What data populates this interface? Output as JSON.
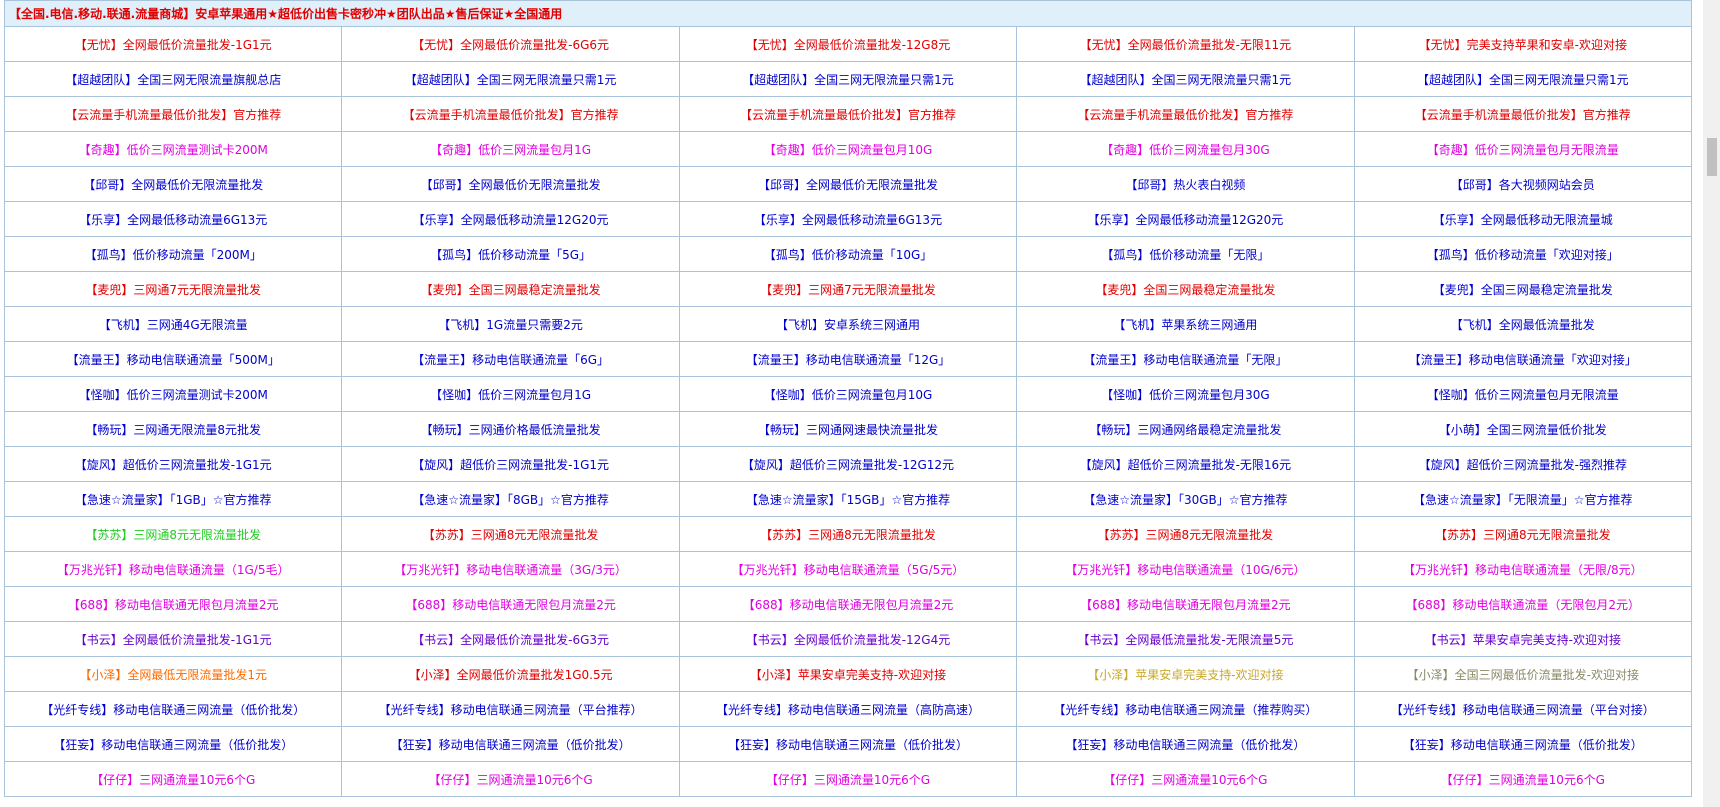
{
  "header": {
    "title": "【全国.电信.移动.联通.流量商城】安卓苹果通用★超低价出售卡密秒冲★团队出品★售后保证★全国通用"
  },
  "colors": {
    "r": "#e00000",
    "b": "#0000cc",
    "m": "#e000e0",
    "p": "#6600cc",
    "g": "#22cc22",
    "o": "#ff6a00",
    "y": "#c8a82a",
    "k": "#8a8a66"
  },
  "rows": [
    [
      [
        "【无忧】全网最低价流量批发-1G1元",
        "r"
      ],
      [
        "【无忧】全网最低价流量批发-6G6元",
        "r"
      ],
      [
        "【无忧】全网最低价流量批发-12G8元",
        "r"
      ],
      [
        "【无忧】全网最低价流量批发-无限11元",
        "r"
      ],
      [
        "【无忧】完美支持苹果和安卓-欢迎对接",
        "r"
      ]
    ],
    [
      [
        "【超越团队】全国三网无限流量旗舰总店",
        "b"
      ],
      [
        "【超越团队】全国三网无限流量只需1元",
        "b"
      ],
      [
        "【超越团队】全国三网无限流量只需1元",
        "b"
      ],
      [
        "【超越团队】全国三网无限流量只需1元",
        "b"
      ],
      [
        "【超越团队】全国三网无限流量只需1元",
        "b"
      ]
    ],
    [
      [
        "【云流量手机流量最低价批发】官方推荐",
        "r"
      ],
      [
        "【云流量手机流量最低价批发】官方推荐",
        "r"
      ],
      [
        "【云流量手机流量最低价批发】官方推荐",
        "r"
      ],
      [
        "【云流量手机流量最低价批发】官方推荐",
        "r"
      ],
      [
        "【云流量手机流量最低价批发】官方推荐",
        "r"
      ]
    ],
    [
      [
        "【奇趣】低价三网流量测试卡200M",
        "m"
      ],
      [
        "【奇趣】低价三网流量包月1G",
        "m"
      ],
      [
        "【奇趣】低价三网流量包月10G",
        "m"
      ],
      [
        "【奇趣】低价三网流量包月30G",
        "m"
      ],
      [
        "【奇趣】低价三网流量包月无限流量",
        "m"
      ]
    ],
    [
      [
        "【邱哥】全网最低价无限流量批发",
        "b"
      ],
      [
        "【邱哥】全网最低价无限流量批发",
        "b"
      ],
      [
        "【邱哥】全网最低价无限流量批发",
        "b"
      ],
      [
        "【邱哥】热火表白视频",
        "b"
      ],
      [
        "【邱哥】各大视频网站会员",
        "b"
      ]
    ],
    [
      [
        "【乐享】全网最低移动流量6G13元",
        "b"
      ],
      [
        "【乐享】全网最低移动流量12G20元",
        "b"
      ],
      [
        "【乐享】全网最低移动流量6G13元",
        "b"
      ],
      [
        "【乐享】全网最低移动流量12G20元",
        "b"
      ],
      [
        "【乐享】全网最低移动无限流量城",
        "b"
      ]
    ],
    [
      [
        "【孤鸟】低价移动流量「200M」",
        "b"
      ],
      [
        "【孤鸟】低价移动流量「5G」",
        "b"
      ],
      [
        "【孤鸟】低价移动流量「10G」",
        "b"
      ],
      [
        "【孤鸟】低价移动流量「无限」",
        "b"
      ],
      [
        "【孤鸟】低价移动流量「欢迎对接」",
        "b"
      ]
    ],
    [
      [
        "【麦兜】三网通7元无限流量批发",
        "r"
      ],
      [
        "【麦兜】全国三网最稳定流量批发",
        "r"
      ],
      [
        "【麦兜】三网通7元无限流量批发",
        "r"
      ],
      [
        "【麦兜】全国三网最稳定流量批发",
        "r"
      ],
      [
        "【麦兜】全国三网最稳定流量批发",
        "b"
      ]
    ],
    [
      [
        "【飞机】三网通4G无限流量",
        "b"
      ],
      [
        "【飞机】1G流量只需要2元",
        "b"
      ],
      [
        "【飞机】安卓系统三网通用",
        "b"
      ],
      [
        "【飞机】苹果系统三网通用",
        "b"
      ],
      [
        "【飞机】全网最低流量批发",
        "b"
      ]
    ],
    [
      [
        "【流量王】移动电信联通流量「500M」",
        "b"
      ],
      [
        "【流量王】移动电信联通流量「6G」",
        "b"
      ],
      [
        "【流量王】移动电信联通流量「12G」",
        "b"
      ],
      [
        "【流量王】移动电信联通流量「无限」",
        "b"
      ],
      [
        "【流量王】移动电信联通流量「欢迎对接」",
        "b"
      ]
    ],
    [
      [
        "【怪咖】低价三网流量测试卡200M",
        "b"
      ],
      [
        "【怪咖】低价三网流量包月1G",
        "b"
      ],
      [
        "【怪咖】低价三网流量包月10G",
        "b"
      ],
      [
        "【怪咖】低价三网流量包月30G",
        "b"
      ],
      [
        "【怪咖】低价三网流量包月无限流量",
        "b"
      ]
    ],
    [
      [
        "【畅玩】三网通无限流量8元批发",
        "b"
      ],
      [
        "【畅玩】三网通价格最低流量批发",
        "b"
      ],
      [
        "【畅玩】三网通网速最快流量批发",
        "b"
      ],
      [
        "【畅玩】三网通网络最稳定流量批发",
        "b"
      ],
      [
        "【小萌】全国三网流量低价批发",
        "b"
      ]
    ],
    [
      [
        "【旋风】超低价三网流量批发-1G1元",
        "b"
      ],
      [
        "【旋风】超低价三网流量批发-1G1元",
        "b"
      ],
      [
        "【旋风】超低价三网流量批发-12G12元",
        "b"
      ],
      [
        "【旋风】超低价三网流量批发-无限16元",
        "b"
      ],
      [
        "【旋风】超低价三网流量批发-强烈推荐",
        "b"
      ]
    ],
    [
      [
        "【急速☆流量家】「1GB」☆官方推荐",
        "b"
      ],
      [
        "【急速☆流量家】「8GB」☆官方推荐",
        "b"
      ],
      [
        "【急速☆流量家】「15GB」☆官方推荐",
        "b"
      ],
      [
        "【急速☆流量家】「30GB」☆官方推荐",
        "b"
      ],
      [
        "【急速☆流量家】「无限流量」☆官方推荐",
        "b"
      ]
    ],
    [
      [
        "【苏苏】三网通8元无限流量批发",
        "g"
      ],
      [
        "【苏苏】三网通8元无限流量批发",
        "r"
      ],
      [
        "【苏苏】三网通8元无限流量批发",
        "r"
      ],
      [
        "【苏苏】三网通8元无限流量批发",
        "r"
      ],
      [
        "【苏苏】三网通8元无限流量批发",
        "r"
      ]
    ],
    [
      [
        "【万兆光钎】移动电信联通流量（1G/5毛）",
        "m"
      ],
      [
        "【万兆光钎】移动电信联通流量（3G/3元）",
        "m"
      ],
      [
        "【万兆光钎】移动电信联通流量（5G/5元）",
        "m"
      ],
      [
        "【万兆光钎】移动电信联通流量（10G/6元）",
        "m"
      ],
      [
        "【万兆光钎】移动电信联通流量（无限/8元）",
        "m"
      ]
    ],
    [
      [
        "【688】移动电信联通无限包月流量2元",
        "m"
      ],
      [
        "【688】移动电信联通无限包月流量2元",
        "m"
      ],
      [
        "【688】移动电信联通无限包月流量2元",
        "m"
      ],
      [
        "【688】移动电信联通无限包月流量2元",
        "m"
      ],
      [
        "【688】移动电信联通流量（无限包月2元）",
        "m"
      ]
    ],
    [
      [
        "【书云】全网最低价流量批发-1G1元",
        "p"
      ],
      [
        "【书云】全网最低价流量批发-6G3元",
        "p"
      ],
      [
        "【书云】全网最低价流量批发-12G4元",
        "p"
      ],
      [
        "【书云】全网最低流量批发-无限流量5元",
        "p"
      ],
      [
        "【书云】苹果安卓完美支持-欢迎对接",
        "p"
      ]
    ],
    [
      [
        "【小泽】全网最低无限流量批发1元",
        "o"
      ],
      [
        "【小泽】全网最低价流量批发1G0.5元",
        "r"
      ],
      [
        "【小泽】苹果安卓完美支持-欢迎对接",
        "r"
      ],
      [
        "【小泽】苹果安卓完美支持-欢迎对接",
        "y"
      ],
      [
        "【小泽】全国三网最低价流量批发-欢迎对接",
        "k"
      ]
    ],
    [
      [
        "【光纤专线】移动电信联通三网流量（低价批发）",
        "b"
      ],
      [
        "【光纤专线】移动电信联通三网流量（平台推荐）",
        "b"
      ],
      [
        "【光纤专线】移动电信联通三网流量（高防高速）",
        "b"
      ],
      [
        "【光纤专线】移动电信联通三网流量（推荐购买）",
        "b"
      ],
      [
        "【光纤专线】移动电信联通三网流量（平台对接）",
        "b"
      ]
    ],
    [
      [
        "【狂妄】移动电信联通三网流量（低价批发）",
        "b"
      ],
      [
        "【狂妄】移动电信联通三网流量（低价批发）",
        "b"
      ],
      [
        "【狂妄】移动电信联通三网流量（低价批发）",
        "b"
      ],
      [
        "【狂妄】移动电信联通三网流量（低价批发）",
        "b"
      ],
      [
        "【狂妄】移动电信联通三网流量（低价批发）",
        "b"
      ]
    ],
    [
      [
        "【仔仔】三网通流量10元6个G",
        "m"
      ],
      [
        "【仔仔】三网通流量10元6个G",
        "m"
      ],
      [
        "【仔仔】三网通流量10元6个G",
        "m"
      ],
      [
        "【仔仔】三网通流量10元6个G",
        "m"
      ],
      [
        "【仔仔】三网通流量10元6个G",
        "m"
      ]
    ]
  ]
}
